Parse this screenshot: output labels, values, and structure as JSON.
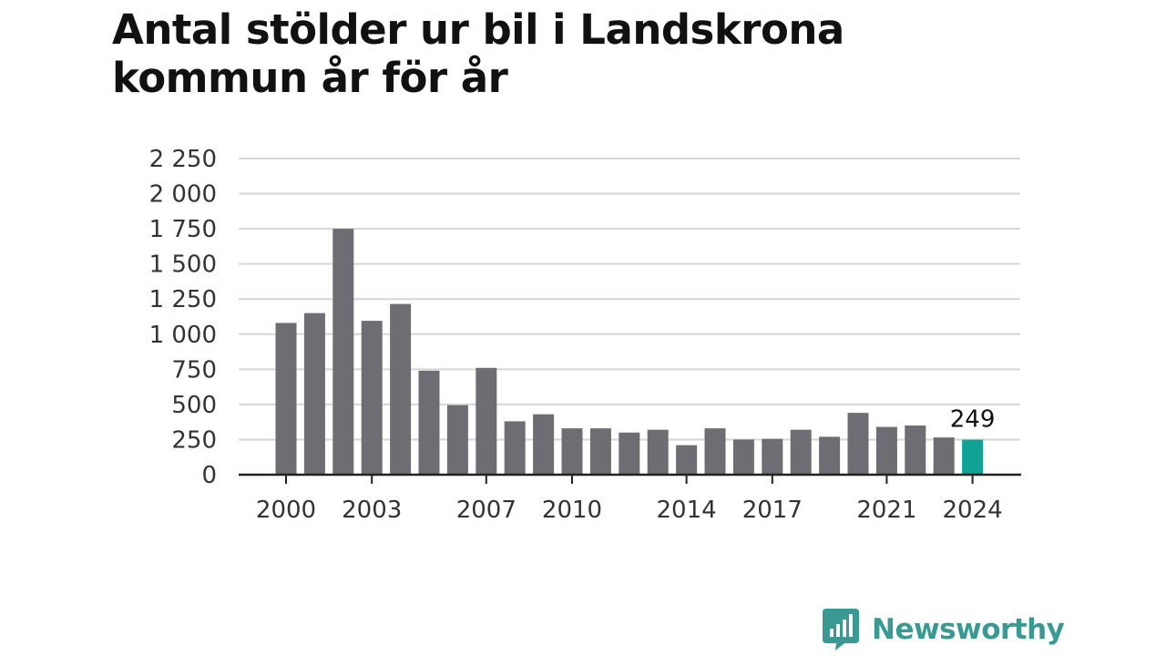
{
  "title": "Antal stölder ur bil i Landskrona kommun år för år",
  "brand": {
    "name": "Newsworthy",
    "icon": "newsworthy-logo-icon",
    "color": "#3a9a93"
  },
  "colors": {
    "bar": "#6e6d73",
    "highlight": "#12a397"
  },
  "chart_data": {
    "type": "bar",
    "title": "Antal stölder ur bil i Landskrona kommun år för år",
    "xlabel": "",
    "ylabel": "",
    "categories": [
      "2000",
      "2001",
      "2002",
      "2003",
      "2004",
      "2005",
      "2006",
      "2007",
      "2008",
      "2009",
      "2010",
      "2011",
      "2012",
      "2013",
      "2014",
      "2015",
      "2016",
      "2017",
      "2018",
      "2019",
      "2020",
      "2021",
      "2022",
      "2023",
      "2024"
    ],
    "values": [
      1080,
      1150,
      1750,
      1095,
      1215,
      740,
      495,
      760,
      380,
      430,
      330,
      330,
      300,
      320,
      210,
      330,
      250,
      255,
      320,
      270,
      440,
      340,
      350,
      265,
      249
    ],
    "ylim": [
      0,
      2250
    ],
    "yticks": [
      0,
      250,
      500,
      750,
      1000,
      1250,
      1500,
      1750,
      2000,
      2250
    ],
    "ytick_labels": [
      "0",
      "250",
      "500",
      "750",
      "1 000",
      "1 250",
      "1 500",
      "1 750",
      "2 000",
      "2 250"
    ],
    "xtick_labels": [
      "2000",
      "2003",
      "2007",
      "2010",
      "2014",
      "2017",
      "2021",
      "2024"
    ],
    "highlight": {
      "category": "2024",
      "label": "249"
    },
    "grid": true,
    "legend": "none"
  }
}
